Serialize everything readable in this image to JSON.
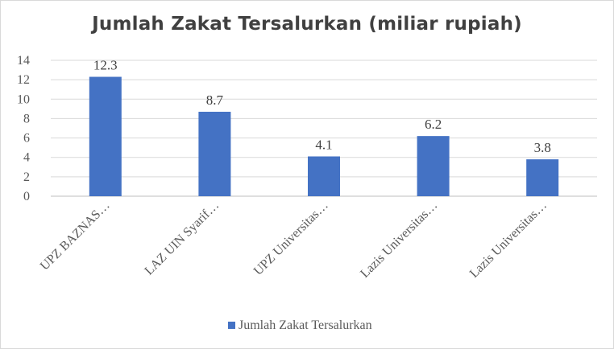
{
  "chart_data": {
    "type": "bar",
    "title": "Jumlah Zakat Tersalurkan (miliar rupiah)",
    "categories": [
      "UPZ BAZNAS…",
      "LAZ UIN Syarif…",
      "UPZ Universitas…",
      "Lazis Universitas…",
      "Lazis Universitas…"
    ],
    "series": [
      {
        "name": "Jumlah Zakat Tersalurkan",
        "values": [
          12.3,
          8.7,
          4.1,
          6.2,
          3.8
        ],
        "color": "#4472c4"
      }
    ],
    "data_labels": [
      "12.3",
      "8.7",
      "4.1",
      "6.2",
      "3.8"
    ],
    "yticks": [
      "0",
      "2",
      "4",
      "6",
      "8",
      "10",
      "12",
      "14"
    ],
    "ylim": [
      0,
      14
    ],
    "xlabel": "",
    "ylabel": "",
    "grid": true,
    "gridline_color": "#d9d9d9",
    "legend_position": "bottom"
  }
}
